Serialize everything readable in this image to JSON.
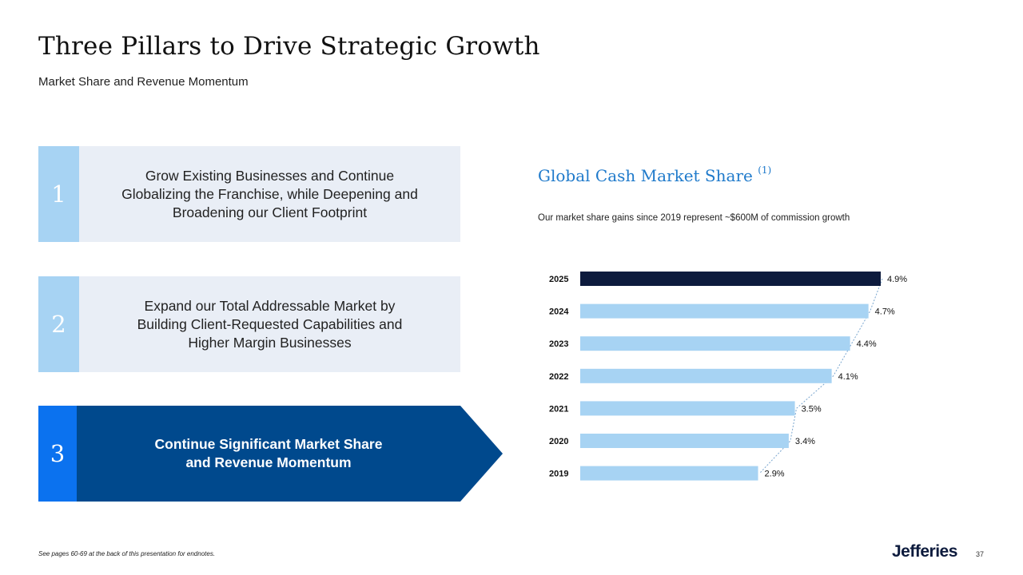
{
  "header": {
    "title": "Three Pillars to Drive Strategic Growth",
    "subtitle": "Market Share and Revenue Momentum"
  },
  "pillars": [
    {
      "number": "1",
      "text": "Grow Existing Businesses and Continue\nGlobalizing the Franchise, while Deepening and\nBroadening our Client Footprint"
    },
    {
      "number": "2",
      "text": "Expand our Total Addressable Market by\nBuilding Client-Requested Capabilities and\nHigher Margin Businesses"
    },
    {
      "number": "3",
      "text": "Continue Significant Market Share\nand Revenue Momentum"
    }
  ],
  "colors": {
    "light_blue": "#a7d3f3",
    "navy": "#0d1b3d",
    "dark_blue": "#00498d",
    "bright_blue": "#0b72ef",
    "panel_bg": "#e9eef6",
    "title_blue": "#1f7acb"
  },
  "chart_data": {
    "type": "bar",
    "orientation": "horizontal",
    "title": "Global Cash Market Share",
    "title_superscript": "(1)",
    "subtitle": "Our market share gains since 2019 represent ~$600M of commission growth",
    "categories": [
      "2025",
      "2024",
      "2023",
      "2022",
      "2021",
      "2020",
      "2019"
    ],
    "values": [
      4.9,
      4.7,
      4.4,
      4.1,
      3.5,
      3.4,
      2.9
    ],
    "value_labels": [
      "4.9%",
      "4.7%",
      "4.4%",
      "4.1%",
      "3.5%",
      "3.4%",
      "2.9%"
    ],
    "highlight_category": "2025",
    "xlim": [
      0,
      4.9
    ],
    "grid": false,
    "dotted_connector": true
  },
  "footer": {
    "note": "See pages 60-69 at the back of this presentation for endnotes.",
    "logo": "Jefferies",
    "page": "37"
  }
}
